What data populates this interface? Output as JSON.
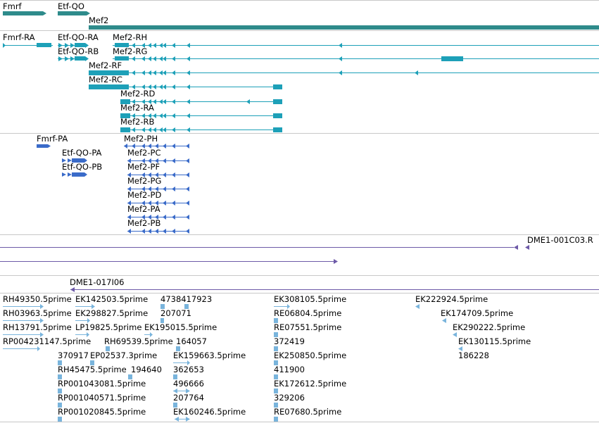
{
  "colors": {
    "gene": "#2e8b8b",
    "transcript": "#1da0b8",
    "protein": "#3a6bc9",
    "clone": "#6d5aa8",
    "est": "#79b4dc",
    "separator": "#c8c8c8"
  },
  "tracks": {
    "genes": {
      "items": [
        {
          "label": "Fmrf",
          "direction": "forward"
        },
        {
          "label": "Etf-QO",
          "direction": "forward"
        },
        {
          "label": "Mef2",
          "direction": "forward"
        }
      ]
    },
    "transcripts": {
      "items": [
        {
          "label": "Fmrf-RA"
        },
        {
          "label": "Etf-QO-RA"
        },
        {
          "label": "Mef2-RH"
        },
        {
          "label": "Etf-QO-RB"
        },
        {
          "label": "Mef2-RG"
        },
        {
          "label": "Mef2-RF"
        },
        {
          "label": "Mef2-RC"
        },
        {
          "label": "Mef2-RD"
        },
        {
          "label": "Mef2-RA"
        },
        {
          "label": "Mef2-RB"
        }
      ]
    },
    "proteins": {
      "items": [
        {
          "label": "Fmrf-PA"
        },
        {
          "label": "Mef2-PH"
        },
        {
          "label": "Etf-QO-PA"
        },
        {
          "label": "Mef2-PC"
        },
        {
          "label": "Etf-QO-PB"
        },
        {
          "label": "Mef2-PF"
        },
        {
          "label": "Mef2-PG"
        },
        {
          "label": "Mef2-PD"
        },
        {
          "label": "Mef2-PA"
        },
        {
          "label": "Mef2-PB"
        }
      ]
    },
    "clones": {
      "items": [
        {
          "label": "DME1-001C03.R"
        },
        {
          "label": "DME1-017I06"
        }
      ]
    },
    "ests": {
      "items": [
        {
          "label": "RH49350.5prime"
        },
        {
          "label": "EK142503.5prime"
        },
        {
          "label": "4738417923"
        },
        {
          "label": "EK308105.5prime"
        },
        {
          "label": "EK222924.5prime"
        },
        {
          "label": "RH03963.5prime"
        },
        {
          "label": "EK298827.5prime"
        },
        {
          "label": "207071"
        },
        {
          "label": "RE06804.5prime"
        },
        {
          "label": "EK174709.5prime"
        },
        {
          "label": "RH13791.5prime"
        },
        {
          "label": "LP19825.5prime"
        },
        {
          "label": "EK195015.5prime"
        },
        {
          "label": "RE07551.5prime"
        },
        {
          "label": "EK290222.5prime"
        },
        {
          "label": "RP004231147.5prime"
        },
        {
          "label": "RH69539.5prime"
        },
        {
          "label": "164057"
        },
        {
          "label": "372419"
        },
        {
          "label": "EK130115.5prime"
        },
        {
          "label": "370917"
        },
        {
          "label": "EP02537.3prime"
        },
        {
          "label": "EK159663.5prime"
        },
        {
          "label": "EK250850.5prime"
        },
        {
          "label": "186228"
        },
        {
          "label": "RH45475.5prime"
        },
        {
          "label": "194640"
        },
        {
          "label": "362653"
        },
        {
          "label": "411900"
        },
        {
          "label": "RP001043081.5prime"
        },
        {
          "label": "496666"
        },
        {
          "label": "EK172612.5prime"
        },
        {
          "label": "RP001040571.5prime"
        },
        {
          "label": "207764"
        },
        {
          "label": "329206"
        },
        {
          "label": "RP001020845.5prime"
        },
        {
          "label": "EK160246.5prime"
        },
        {
          "label": "RE07680.5prime"
        }
      ]
    }
  }
}
